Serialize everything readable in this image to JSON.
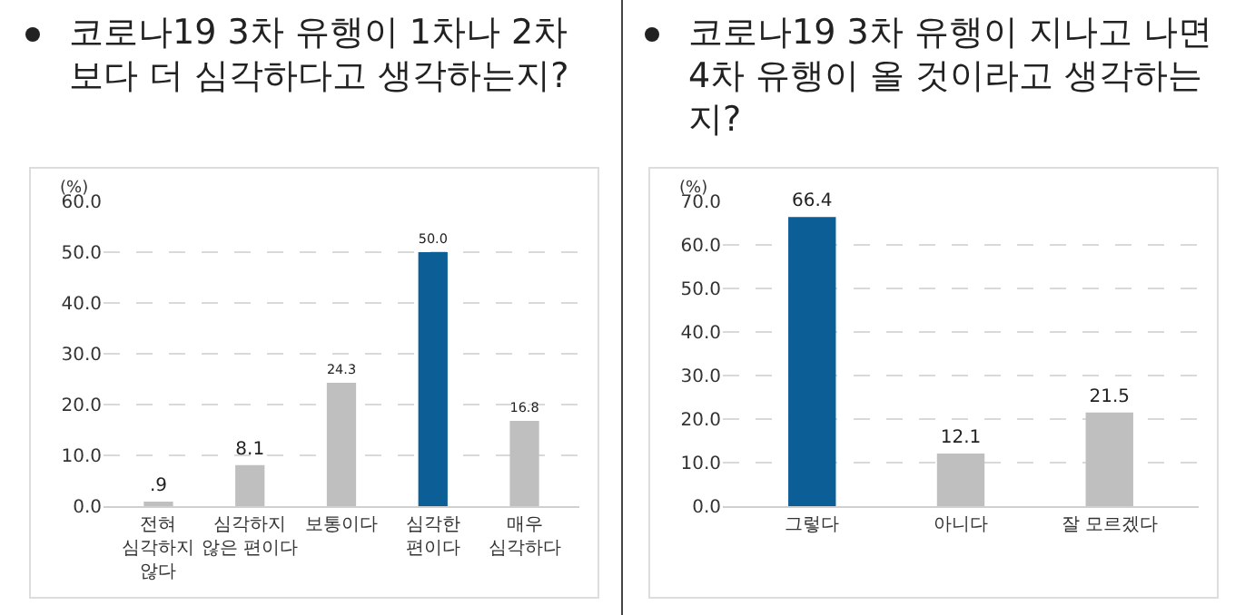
{
  "chart_data": [
    {
      "type": "bar",
      "title": "코로나19  3차 유행이 1차나 2차보다 더 심각하다고 생각하는지?",
      "ylabel": "(%)",
      "categories": [
        "전혀 심각하지 않다",
        "심각하지 않은 편이다",
        "보통이다",
        "심각한 편이다",
        "매우 심각하다"
      ],
      "values": [
        0.9,
        8.1,
        24.3,
        50.0,
        16.8
      ],
      "colors": [
        "#bfbfbf",
        "#bfbfbf",
        "#bfbfbf",
        "#0b5e96",
        "#bfbfbf"
      ],
      "value_labels": [
        ".9",
        "8.1",
        "24.3",
        "50.0",
        "16.8"
      ],
      "ylim": [
        0,
        60
      ],
      "yticks": [
        {
          "value": 0,
          "label": "0.0"
        },
        {
          "value": 10,
          "label": "10.0"
        },
        {
          "value": 20,
          "label": "20.0"
        },
        {
          "value": 30,
          "label": "30.0"
        },
        {
          "value": 40,
          "label": "40.0"
        },
        {
          "value": 50,
          "label": "50.0"
        },
        {
          "value": 60,
          "label": "60.0"
        }
      ],
      "grid": "y"
    },
    {
      "type": "bar",
      "title": "코로나19  3차 유행이 지나고 나면 4차 유행이 올 것이라고 생각하는지?",
      "ylabel": "(%)",
      "categories": [
        "그렇다",
        "아니다",
        "잘 모르겠다"
      ],
      "values": [
        66.4,
        12.1,
        21.5
      ],
      "colors": [
        "#0b5e96",
        "#bfbfbf",
        "#bfbfbf"
      ],
      "value_labels": [
        "66.4",
        "12.1",
        "21.5"
      ],
      "ylim": [
        0,
        70
      ],
      "yticks": [
        {
          "value": 0,
          "label": "0.0"
        },
        {
          "value": 10,
          "label": "10.0"
        },
        {
          "value": 20,
          "label": "20.0"
        },
        {
          "value": 30,
          "label": "30.0"
        },
        {
          "value": 40,
          "label": "40.0"
        },
        {
          "value": 50,
          "label": "50.0"
        },
        {
          "value": 60,
          "label": "60.0"
        },
        {
          "value": 70,
          "label": "70.0"
        }
      ],
      "grid": "y"
    }
  ]
}
